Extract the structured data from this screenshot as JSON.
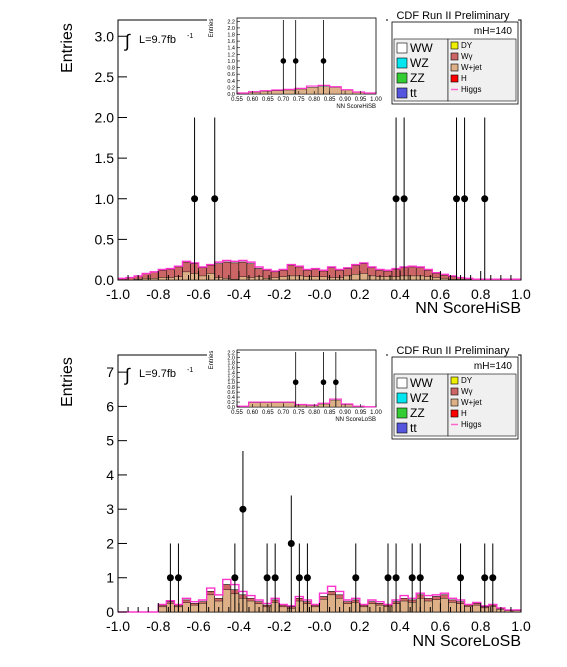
{
  "chart_data": [
    {
      "type": "bar",
      "id": "hisb",
      "title": "CDF Run II Preliminary",
      "xlabel": "NN ScoreHiSB",
      "ylabel": "Entries",
      "xlim": [
        -1.0,
        1.0
      ],
      "ylim": [
        0,
        3.2
      ],
      "xticks": [
        "-1.0",
        "-0.8",
        "-0.6",
        "-0.4",
        "-0.2",
        "-0.0",
        "0.2",
        "0.4",
        "0.6",
        "0.8",
        "1.0"
      ],
      "yticks": [
        "0.0",
        "0.5",
        "1.0",
        "1.5",
        "2.0",
        "2.5",
        "3.0"
      ],
      "lumi_label": "L=9.7fb",
      "lumi_sup": "-1",
      "mass_label": "m",
      "mass_sub": "H",
      "mass_value": "=140",
      "bin_edges_start": -1.0,
      "bin_width": 0.04,
      "stack_total": [
        0.02,
        0.03,
        0.05,
        0.08,
        0.1,
        0.12,
        0.13,
        0.16,
        0.22,
        0.2,
        0.15,
        0.18,
        0.2,
        0.22,
        0.21,
        0.22,
        0.2,
        0.14,
        0.12,
        0.1,
        0.12,
        0.18,
        0.16,
        0.12,
        0.13,
        0.11,
        0.15,
        0.12,
        0.14,
        0.18,
        0.2,
        0.15,
        0.12,
        0.11,
        0.13,
        0.15,
        0.16,
        0.15,
        0.12,
        0.08,
        0.06,
        0.04,
        0.03,
        0.02,
        0.01,
        0.01,
        0.01,
        0.01,
        0.01,
        0.01
      ],
      "stack_top": [
        0.02,
        0.03,
        0.04,
        0.06,
        0.08,
        0.09,
        0.1,
        0.12,
        0.12,
        0.12,
        0.1,
        0.1,
        0.17,
        0.2,
        0.2,
        0.18,
        0.17,
        0.1,
        0.1,
        0.07,
        0.08,
        0.13,
        0.11,
        0.08,
        0.09,
        0.07,
        0.12,
        0.09,
        0.09,
        0.11,
        0.12,
        0.1,
        0.08,
        0.07,
        0.09,
        0.1,
        0.11,
        0.1,
        0.08,
        0.05,
        0.04,
        0.03,
        0.02,
        0.01,
        0.01,
        0.01,
        0.01,
        0.01,
        0.01,
        0.01
      ],
      "higgs": [
        0.02,
        0.03,
        0.05,
        0.08,
        0.1,
        0.13,
        0.14,
        0.17,
        0.23,
        0.21,
        0.16,
        0.19,
        0.22,
        0.24,
        0.23,
        0.24,
        0.22,
        0.16,
        0.13,
        0.11,
        0.13,
        0.19,
        0.17,
        0.13,
        0.14,
        0.12,
        0.16,
        0.13,
        0.15,
        0.19,
        0.21,
        0.16,
        0.13,
        0.12,
        0.14,
        0.16,
        0.17,
        0.16,
        0.13,
        0.09,
        0.07,
        0.05,
        0.03,
        0.02,
        0.01,
        0.01,
        0.01,
        0.01,
        0.01,
        0.01
      ],
      "data_points": [
        {
          "x": -0.62,
          "y": 1,
          "err_lo": 1,
          "err_hi": 2.0
        },
        {
          "x": -0.52,
          "y": 1,
          "err_lo": 1,
          "err_hi": 2.0
        },
        {
          "x": 0.38,
          "y": 1,
          "err_lo": 1,
          "err_hi": 2.0
        },
        {
          "x": 0.42,
          "y": 1,
          "err_lo": 1,
          "err_hi": 2.0
        },
        {
          "x": 0.68,
          "y": 1,
          "err_lo": 1,
          "err_hi": 2.0
        },
        {
          "x": 0.72,
          "y": 1,
          "err_lo": 1,
          "err_hi": 2.0
        },
        {
          "x": 0.82,
          "y": 1,
          "err_lo": 1,
          "err_hi": 2.0
        }
      ],
      "inset": {
        "xlabel": "NN ScoreHiSB",
        "ylabel": "Entries",
        "xlim": [
          0.55,
          1.0
        ],
        "ylim": [
          0,
          2.3
        ],
        "xticks": [
          "0.55",
          "0.60",
          "0.65",
          "0.70",
          "0.75",
          "0.80",
          "0.85",
          "0.90",
          "0.95",
          "1.00"
        ],
        "yticks": [
          "0.0",
          "0.2",
          "0.4",
          "0.6",
          "0.8",
          "1.0",
          "1.2",
          "1.4",
          "1.6",
          "1.8",
          "2.0",
          "2.2"
        ],
        "stack_total": [
          0.02,
          0.05,
          0.08,
          0.1,
          0.12,
          0.15,
          0.2,
          0.22,
          0.2,
          0.12,
          0.05,
          0.02
        ],
        "higgs": [
          0.03,
          0.07,
          0.1,
          0.12,
          0.14,
          0.17,
          0.24,
          0.26,
          0.22,
          0.13,
          0.06,
          0.03
        ],
        "data_points": [
          {
            "x": 0.7,
            "y": 1
          },
          {
            "x": 0.74,
            "y": 1
          },
          {
            "x": 0.83,
            "y": 1
          }
        ]
      },
      "legend": [
        {
          "name": "WW",
          "color": "#ffffff"
        },
        {
          "name": "WZ",
          "color": "#00e5ee"
        },
        {
          "name": "ZZ",
          "color": "#33cc33"
        },
        {
          "name": "tt",
          "color": "#5555dd"
        },
        {
          "name": "DY",
          "color": "#eeee00"
        },
        {
          "name": "Wγ",
          "color": "#cc6666"
        },
        {
          "name": "W+jet",
          "color": "#ddb088"
        },
        {
          "name": "H",
          "color": "#ff0000"
        },
        {
          "name": "Higgs",
          "color": "#ff66cc"
        }
      ]
    },
    {
      "type": "bar",
      "id": "losb",
      "title": "CDF Run II Preliminary",
      "xlabel": "NN ScoreLoSB",
      "ylabel": "Entries",
      "xlim": [
        -1.0,
        1.0
      ],
      "ylim": [
        0,
        7.5
      ],
      "xticks": [
        "-1.0",
        "-0.8",
        "-0.6",
        "-0.4",
        "-0.2",
        "-0.0",
        "0.2",
        "0.4",
        "0.6",
        "0.8",
        "1.0"
      ],
      "yticks": [
        "0",
        "1",
        "2",
        "3",
        "4",
        "5",
        "6",
        "7"
      ],
      "lumi_label": "L=9.7fb",
      "lumi_sup": "-1",
      "mass_label": "m",
      "mass_sub": "H",
      "mass_value": "=140",
      "bin_edges_start": -1.0,
      "bin_width": 0.04,
      "stack_total": [
        0,
        0,
        0,
        0,
        0,
        0.2,
        0.3,
        0.2,
        0.35,
        0.25,
        0.3,
        0.6,
        0.4,
        0.8,
        0.65,
        0.5,
        0.4,
        0.3,
        0.2,
        0.35,
        0.2,
        0.15,
        0.4,
        0.3,
        0.2,
        0.45,
        0.6,
        0.5,
        0.3,
        0.35,
        0.2,
        0.3,
        0.25,
        0.2,
        0.3,
        0.4,
        0.35,
        0.5,
        0.4,
        0.45,
        0.5,
        0.35,
        0.3,
        0.2,
        0.25,
        0.15,
        0.2,
        0.1,
        0.05,
        0.05
      ],
      "stack_top": [
        0,
        0,
        0,
        0,
        0,
        0.05,
        0.05,
        0.05,
        0.08,
        0.05,
        0.05,
        0.1,
        0.08,
        0.15,
        0.12,
        0.1,
        0.08,
        0.06,
        0.05,
        0.07,
        0.05,
        0.04,
        0.08,
        0.06,
        0.05,
        0.08,
        0.1,
        0.1,
        0.06,
        0.07,
        0.05,
        0.06,
        0.05,
        0.04,
        0.06,
        0.08,
        0.07,
        0.1,
        0.08,
        0.09,
        0.1,
        0.07,
        0.06,
        0.04,
        0.05,
        0.03,
        0.04,
        0.02,
        0.01,
        0.01
      ],
      "higgs": [
        0,
        0,
        0,
        0,
        0,
        0.22,
        0.33,
        0.22,
        0.4,
        0.3,
        0.35,
        0.7,
        0.5,
        0.95,
        0.8,
        0.6,
        0.48,
        0.35,
        0.25,
        0.4,
        0.22,
        0.18,
        0.45,
        0.35,
        0.22,
        0.55,
        0.75,
        0.6,
        0.35,
        0.4,
        0.22,
        0.35,
        0.3,
        0.22,
        0.35,
        0.48,
        0.4,
        0.55,
        0.48,
        0.5,
        0.55,
        0.4,
        0.35,
        0.22,
        0.28,
        0.18,
        0.22,
        0.12,
        0.06,
        0.06
      ],
      "data_points": [
        {
          "x": -0.74,
          "y": 1,
          "err_lo": 1,
          "err_hi": 2.0
        },
        {
          "x": -0.7,
          "y": 1,
          "err_lo": 1,
          "err_hi": 2.0
        },
        {
          "x": -0.42,
          "y": 1,
          "err_lo": 1,
          "err_hi": 2.0
        },
        {
          "x": -0.38,
          "y": 3,
          "err_lo": 1.6,
          "err_hi": 4.7
        },
        {
          "x": -0.26,
          "y": 1,
          "err_lo": 1,
          "err_hi": 2.0
        },
        {
          "x": -0.22,
          "y": 1,
          "err_lo": 1,
          "err_hi": 2.0
        },
        {
          "x": -0.14,
          "y": 2,
          "err_lo": 1.3,
          "err_hi": 3.4
        },
        {
          "x": -0.1,
          "y": 1,
          "err_lo": 1,
          "err_hi": 2.0
        },
        {
          "x": -0.06,
          "y": 1,
          "err_lo": 1,
          "err_hi": 2.0
        },
        {
          "x": 0.18,
          "y": 1,
          "err_lo": 1,
          "err_hi": 2.0
        },
        {
          "x": 0.34,
          "y": 1,
          "err_lo": 1,
          "err_hi": 2.0
        },
        {
          "x": 0.38,
          "y": 1,
          "err_lo": 1,
          "err_hi": 2.0
        },
        {
          "x": 0.46,
          "y": 1,
          "err_lo": 1,
          "err_hi": 2.0
        },
        {
          "x": 0.5,
          "y": 1,
          "err_lo": 1,
          "err_hi": 2.0
        },
        {
          "x": 0.7,
          "y": 1,
          "err_lo": 1,
          "err_hi": 2.0
        },
        {
          "x": 0.82,
          "y": 1,
          "err_lo": 1,
          "err_hi": 2.0
        },
        {
          "x": 0.86,
          "y": 1,
          "err_lo": 1,
          "err_hi": 2.0
        }
      ],
      "inset": {
        "xlabel": "NN ScoreLoSB",
        "ylabel": "Entries",
        "xlim": [
          0.55,
          1.0
        ],
        "ylim": [
          0,
          2.3
        ],
        "xticks": [
          "0.55",
          "0.60",
          "0.65",
          "0.70",
          "0.75",
          "0.80",
          "0.85",
          "0.90",
          "0.95",
          "1.00"
        ],
        "yticks": [
          "0.0",
          "0.2",
          "0.4",
          "0.6",
          "0.8",
          "1.0",
          "1.2",
          "1.4",
          "1.6",
          "1.8",
          "2.0",
          "2.2"
        ],
        "stack_total": [
          0.02,
          0.18,
          0.18,
          0.18,
          0.18,
          0.08,
          0.06,
          0.12,
          0.28,
          0.1,
          0.02,
          0.01
        ],
        "higgs": [
          0.03,
          0.2,
          0.2,
          0.2,
          0.2,
          0.1,
          0.08,
          0.15,
          0.32,
          0.12,
          0.03,
          0.01
        ],
        "data_points": [
          {
            "x": 0.74,
            "y": 1
          },
          {
            "x": 0.83,
            "y": 1
          },
          {
            "x": 0.87,
            "y": 1
          }
        ]
      },
      "legend": [
        {
          "name": "WW",
          "color": "#ffffff"
        },
        {
          "name": "WZ",
          "color": "#00e5ee"
        },
        {
          "name": "ZZ",
          "color": "#33cc33"
        },
        {
          "name": "tt",
          "color": "#5555dd"
        },
        {
          "name": "DY",
          "color": "#eeee00"
        },
        {
          "name": "Wγ",
          "color": "#cc6666"
        },
        {
          "name": "W+jet",
          "color": "#ddb088"
        },
        {
          "name": "H",
          "color": "#ff0000"
        },
        {
          "name": "Higgs",
          "color": "#ff66cc"
        }
      ]
    }
  ]
}
